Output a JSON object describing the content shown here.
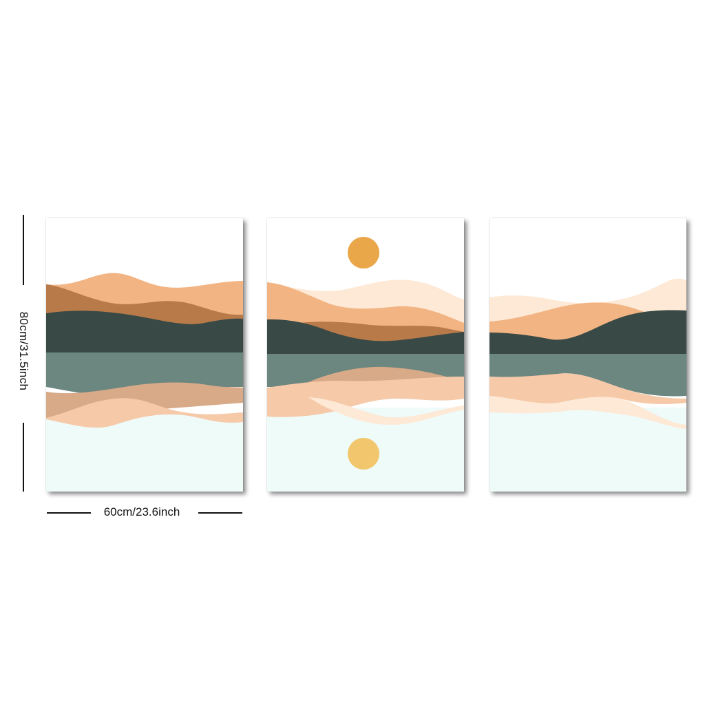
{
  "dimensions": {
    "height_label": "80cm/31.5inch",
    "width_label": "60cm/23.6inch"
  },
  "palette": {
    "sky": "#ffffff",
    "peach_light": "#fde9d6",
    "peach": "#f2b483",
    "peach_soft": "#f6c9a8",
    "terracotta": "#b97a4a",
    "dark_green": "#394a46",
    "sage": "#6c8780",
    "water": "#eefbf9",
    "sun": "#eaa74a",
    "sun_reflection": "#f2c66c"
  },
  "panels": [
    {
      "name": "left",
      "sun": false
    },
    {
      "name": "middle",
      "sun": true
    },
    {
      "name": "right",
      "sun": false
    }
  ]
}
